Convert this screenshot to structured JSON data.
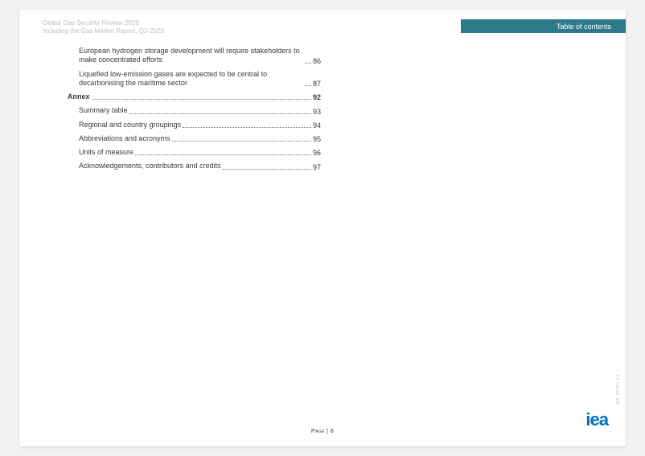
{
  "header": {
    "title_line1": "Global Gas Security Review 2023",
    "title_line2": "Including the Gas Market Report, Q3-2023",
    "section_label": "Table of contents",
    "banner_color": "#2c7a8c"
  },
  "toc": {
    "entries": [
      {
        "text": "European hydrogen storage development will require stakeholders to make concentrated efforts",
        "page": "86",
        "level": "sub",
        "bold": false
      },
      {
        "text": "Liquefied low-emission gases are expected to be central to decarbonising the maritime sector",
        "page": "87",
        "level": "sub",
        "bold": false
      },
      {
        "text": "Annex",
        "page": "92",
        "level": "top",
        "bold": true
      },
      {
        "text": "Summary table",
        "page": "93",
        "level": "sub",
        "bold": false
      },
      {
        "text": "Regional and country groupings",
        "page": "94",
        "level": "sub",
        "bold": false
      },
      {
        "text": "Abbreviations and acronyms",
        "page": "95",
        "level": "sub",
        "bold": false
      },
      {
        "text": "Units of measure",
        "page": "96",
        "level": "sub",
        "bold": false
      },
      {
        "text": "Acknowledgements, contributors and credits",
        "page": "97",
        "level": "sub",
        "bold": false
      }
    ]
  },
  "footer": {
    "page_label": "Page | 6",
    "logo_text": "iea",
    "logo_color": "#0070c0",
    "side_text": "IEA. CC BY 4.0."
  },
  "colors": {
    "page_bg": "#ffffff",
    "canvas_bg": "#f2f2f2",
    "muted_text": "#bfbfbf",
    "body_text": "#3a3a3a"
  }
}
